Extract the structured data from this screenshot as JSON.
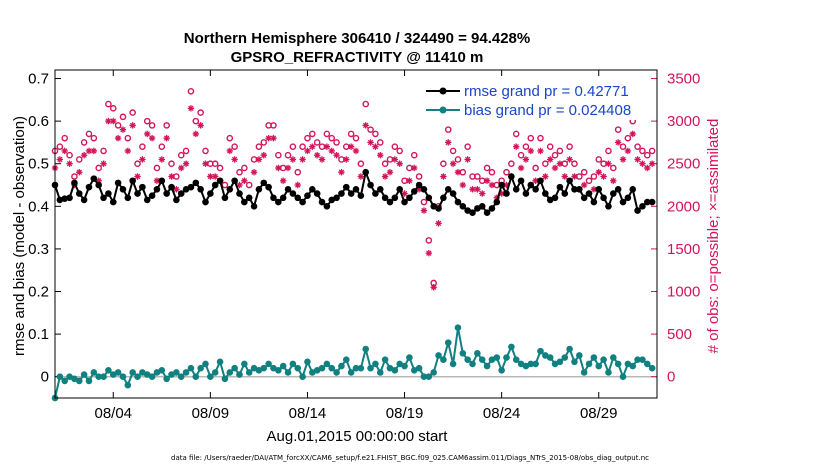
{
  "chart_data": {
    "type": "line",
    "title": "Northern Hemisphere 306410 / 324490 = 94.428%",
    "subtitle": "GPSRO_REFRACTIVITY @ 11410 m",
    "xlabel": "Aug.01,2015 00:00:00 start",
    "ylabel": "rmse and bias (model - observation)",
    "y2label": "# of obs: o=possible; ×=assimilated",
    "xlim": [
      1.0,
      32.0
    ],
    "ylim": [
      -0.05,
      0.72
    ],
    "y2lim": [
      -250,
      3600
    ],
    "x_ticks": [
      4,
      9,
      14,
      19,
      24,
      29
    ],
    "x_tick_labels": [
      "08/04",
      "08/09",
      "08/14",
      "08/19",
      "08/24",
      "08/29"
    ],
    "y_ticks": [
      0,
      0.1,
      0.2,
      0.3,
      0.4,
      0.5,
      0.6,
      0.7
    ],
    "y_tick_labels": [
      "0",
      "0.1",
      "0.2",
      "0.3",
      "0.4",
      "0.5",
      "0.6",
      "0.7"
    ],
    "y2_ticks": [
      0,
      500,
      1000,
      1500,
      2000,
      2500,
      3000,
      3500
    ],
    "y2_tick_labels": [
      "0",
      "500",
      "1000",
      "1500",
      "2000",
      "2500",
      "3000",
      "3500"
    ],
    "zero_line": 0,
    "colors": {
      "rmse": "#000000",
      "bias": "#118080",
      "obs": "#d4145a",
      "legend_text": "#1a46c8"
    },
    "legend": {
      "position": "top-right",
      "rmse_label": "rmse grand pr = 0.42771",
      "bias_label": "bias grand pr = 0.024408"
    },
    "rmse": {
      "name": "rmse",
      "x": [
        1.0,
        1.25,
        1.5,
        1.75,
        2.0,
        2.25,
        2.5,
        2.75,
        3.0,
        3.25,
        3.5,
        3.75,
        4.0,
        4.25,
        4.5,
        4.75,
        5.0,
        5.25,
        5.5,
        5.75,
        6.0,
        6.25,
        6.5,
        6.75,
        7.0,
        7.25,
        7.5,
        7.75,
        8.0,
        8.25,
        8.5,
        8.75,
        9.0,
        9.25,
        9.5,
        9.75,
        10.0,
        10.25,
        10.5,
        10.75,
        11.0,
        11.25,
        11.5,
        11.75,
        12.0,
        12.25,
        12.5,
        12.75,
        13.0,
        13.25,
        13.5,
        13.75,
        14.0,
        14.25,
        14.5,
        14.75,
        15.0,
        15.25,
        15.5,
        15.75,
        16.0,
        16.25,
        16.5,
        16.75,
        17.0,
        17.25,
        17.5,
        17.75,
        18.0,
        18.25,
        18.5,
        18.75,
        19.0,
        19.25,
        19.5,
        19.75,
        20.0,
        20.25,
        20.5,
        20.75,
        21.0,
        21.25,
        21.5,
        21.75,
        22.0,
        22.25,
        22.5,
        22.75,
        23.0,
        23.25,
        23.5,
        23.75,
        24.0,
        24.25,
        24.5,
        24.75,
        25.0,
        25.25,
        25.5,
        25.75,
        26.0,
        26.25,
        26.5,
        26.75,
        27.0,
        27.25,
        27.5,
        27.75,
        28.0,
        28.25,
        28.5,
        28.75,
        29.0,
        29.25,
        29.5,
        29.75,
        30.0,
        30.25,
        30.5,
        30.75,
        31.0,
        31.25,
        31.5,
        31.75
      ],
      "values": [
        0.45,
        0.415,
        0.418,
        0.42,
        0.455,
        0.43,
        0.415,
        0.445,
        0.465,
        0.45,
        0.42,
        0.43,
        0.41,
        0.455,
        0.44,
        0.42,
        0.46,
        0.43,
        0.445,
        0.415,
        0.425,
        0.44,
        0.46,
        0.43,
        0.445,
        0.415,
        0.43,
        0.44,
        0.445,
        0.455,
        0.44,
        0.41,
        0.43,
        0.45,
        0.46,
        0.42,
        0.44,
        0.46,
        0.43,
        0.41,
        0.42,
        0.4,
        0.44,
        0.455,
        0.445,
        0.42,
        0.41,
        0.42,
        0.44,
        0.43,
        0.42,
        0.41,
        0.425,
        0.44,
        0.43,
        0.41,
        0.4,
        0.415,
        0.42,
        0.43,
        0.445,
        0.43,
        0.44,
        0.425,
        0.48,
        0.45,
        0.43,
        0.44,
        0.42,
        0.41,
        0.42,
        0.44,
        0.41,
        0.42,
        0.435,
        0.45,
        0.44,
        0.42,
        0.4,
        0.395,
        0.42,
        0.44,
        0.43,
        0.41,
        0.4,
        0.39,
        0.385,
        0.395,
        0.4,
        0.385,
        0.395,
        0.41,
        0.45,
        0.43,
        0.47,
        0.44,
        0.46,
        0.43,
        0.45,
        0.44,
        0.46,
        0.43,
        0.415,
        0.42,
        0.445,
        0.43,
        0.46,
        0.44,
        0.44,
        0.42,
        0.43,
        0.41,
        0.44,
        0.42,
        0.4,
        0.43,
        0.44,
        0.41,
        0.42,
        0.44,
        0.39,
        0.4,
        0.41,
        0.41
      ]
    },
    "bias": {
      "name": "bias",
      "x": [
        1.0,
        1.25,
        1.5,
        1.75,
        2.0,
        2.25,
        2.5,
        2.75,
        3.0,
        3.25,
        3.5,
        3.75,
        4.0,
        4.25,
        4.5,
        4.75,
        5.0,
        5.25,
        5.5,
        5.75,
        6.0,
        6.25,
        6.5,
        6.75,
        7.0,
        7.25,
        7.5,
        7.75,
        8.0,
        8.25,
        8.5,
        8.75,
        9.0,
        9.25,
        9.5,
        9.75,
        10.0,
        10.25,
        10.5,
        10.75,
        11.0,
        11.25,
        11.5,
        11.75,
        12.0,
        12.25,
        12.5,
        12.75,
        13.0,
        13.25,
        13.5,
        13.75,
        14.0,
        14.25,
        14.5,
        14.75,
        15.0,
        15.25,
        15.5,
        15.75,
        16.0,
        16.25,
        16.5,
        16.75,
        17.0,
        17.25,
        17.5,
        17.75,
        18.0,
        18.25,
        18.5,
        18.75,
        19.0,
        19.25,
        19.5,
        19.75,
        20.0,
        20.25,
        20.5,
        20.75,
        21.0,
        21.25,
        21.5,
        21.75,
        22.0,
        22.25,
        22.5,
        22.75,
        23.0,
        23.25,
        23.5,
        23.75,
        24.0,
        24.25,
        24.5,
        24.75,
        25.0,
        25.25,
        25.5,
        25.75,
        26.0,
        26.25,
        26.5,
        26.75,
        27.0,
        27.25,
        27.5,
        27.75,
        28.0,
        28.25,
        28.5,
        28.75,
        29.0,
        29.25,
        29.5,
        29.75,
        30.0,
        30.25,
        30.5,
        30.75,
        31.0,
        31.25,
        31.5,
        31.75
      ],
      "values": [
        -0.05,
        0.0,
        -0.01,
        0.0,
        -0.005,
        -0.01,
        0.005,
        -0.01,
        0.01,
        0.0,
        0.0,
        0.015,
        0.005,
        0.01,
        0.0,
        -0.02,
        0.01,
        0.0,
        0.01,
        0.005,
        0.0,
        0.01,
        0.015,
        -0.005,
        0.005,
        0.01,
        0.0,
        0.01,
        0.02,
        0.0,
        0.02,
        0.03,
        0.0,
        0.01,
        0.035,
        -0.005,
        0.01,
        0.02,
        0.005,
        0.03,
        0.01,
        0.02,
        0.015,
        0.02,
        0.03,
        0.02,
        0.015,
        0.025,
        0.01,
        0.03,
        0.02,
        0.0,
        0.035,
        0.01,
        0.015,
        0.02,
        0.03,
        0.02,
        0.01,
        0.025,
        0.04,
        0.01,
        0.02,
        0.02,
        0.065,
        0.02,
        0.03,
        0.01,
        0.04,
        0.02,
        0.015,
        0.03,
        0.025,
        0.045,
        0.015,
        0.02,
        0.0,
        0.0,
        0.01,
        0.05,
        0.04,
        0.08,
        0.03,
        0.115,
        0.055,
        0.04,
        0.03,
        0.055,
        0.04,
        0.025,
        0.04,
        0.045,
        0.015,
        0.045,
        0.07,
        0.04,
        0.03,
        0.025,
        0.03,
        0.03,
        0.06,
        0.05,
        0.045,
        0.03,
        0.035,
        0.045,
        0.065,
        0.035,
        0.05,
        0.01,
        0.03,
        0.045,
        0.025,
        0.04,
        0.01,
        0.045,
        0.03,
        0.0,
        0.03,
        0.025,
        0.04,
        0.04,
        0.03,
        0.02
      ]
    },
    "obs_possible": {
      "name": "possible",
      "x": [
        1.0,
        1.25,
        1.5,
        1.75,
        2.0,
        2.25,
        2.5,
        2.75,
        3.0,
        3.25,
        3.5,
        3.75,
        4.0,
        4.25,
        4.5,
        4.75,
        5.0,
        5.25,
        5.5,
        5.75,
        6.0,
        6.25,
        6.5,
        6.75,
        7.0,
        7.25,
        7.5,
        7.75,
        8.0,
        8.25,
        8.5,
        8.75,
        9.0,
        9.25,
        9.5,
        9.75,
        10.0,
        10.25,
        10.5,
        10.75,
        11.0,
        11.25,
        11.5,
        11.75,
        12.0,
        12.25,
        12.5,
        12.75,
        13.0,
        13.25,
        13.5,
        13.75,
        14.0,
        14.25,
        14.5,
        14.75,
        15.0,
        15.25,
        15.5,
        15.75,
        16.0,
        16.25,
        16.5,
        16.75,
        17.0,
        17.25,
        17.5,
        17.75,
        18.0,
        18.25,
        18.5,
        18.75,
        19.0,
        19.25,
        19.5,
        19.75,
        20.0,
        20.25,
        20.5,
        20.75,
        21.0,
        21.25,
        21.5,
        21.75,
        22.0,
        22.25,
        22.5,
        22.75,
        23.0,
        23.25,
        23.5,
        23.75,
        24.0,
        24.25,
        24.5,
        24.75,
        25.0,
        25.25,
        25.5,
        25.75,
        26.0,
        26.25,
        26.5,
        26.75,
        27.0,
        27.25,
        27.5,
        27.75,
        28.0,
        28.25,
        28.5,
        28.75,
        29.0,
        29.25,
        29.5,
        29.75,
        30.0,
        30.25,
        30.5,
        30.75,
        31.0,
        31.25,
        31.5,
        31.75
      ],
      "values": [
        2650,
        2700,
        2800,
        2600,
        2350,
        2550,
        2750,
        2850,
        2800,
        2450,
        2650,
        3200,
        3150,
        2950,
        3050,
        2800,
        3100,
        2500,
        2700,
        3000,
        2950,
        2450,
        2700,
        2950,
        2500,
        2350,
        2600,
        2650,
        3350,
        3000,
        3100,
        2650,
        2500,
        2500,
        2450,
        2250,
        2800,
        2700,
        2400,
        2450,
        2250,
        2550,
        2700,
        2750,
        2950,
        2950,
        2600,
        2450,
        2600,
        2700,
        2400,
        2700,
        2800,
        2850,
        2750,
        2700,
        2850,
        2800,
        2750,
        2550,
        2700,
        2850,
        2800,
        2500,
        3200,
        2900,
        2850,
        2750,
        2500,
        2550,
        2700,
        2650,
        2300,
        2450,
        2600,
        2350,
        2050,
        1600,
        1100,
        2000,
        2500,
        2900,
        2650,
        2550,
        2400,
        2700,
        2350,
        2350,
        2300,
        2450,
        2400,
        2250,
        2300,
        2400,
        2500,
        2850,
        2600,
        2700,
        2800,
        2450,
        2800,
        2500,
        2700,
        2600,
        2650,
        2500,
        2700,
        2500,
        2350,
        2400,
        2300,
        2350,
        2550,
        2500,
        2650,
        2450,
        2900,
        2700,
        2800,
        3000,
        2700,
        2650,
        2600,
        2650
      ]
    },
    "obs_assimilated": {
      "name": "assimilated",
      "x": [
        1.0,
        1.25,
        1.5,
        1.75,
        2.0,
        2.25,
        2.5,
        2.75,
        3.0,
        3.25,
        3.5,
        3.75,
        4.0,
        4.25,
        4.5,
        4.75,
        5.0,
        5.25,
        5.5,
        5.75,
        6.0,
        6.25,
        6.5,
        6.75,
        7.0,
        7.25,
        7.5,
        7.75,
        8.0,
        8.25,
        8.5,
        8.75,
        9.0,
        9.25,
        9.5,
        9.75,
        10.0,
        10.25,
        10.5,
        10.75,
        11.0,
        11.25,
        11.5,
        11.75,
        12.0,
        12.25,
        12.5,
        12.75,
        13.0,
        13.25,
        13.5,
        13.75,
        14.0,
        14.25,
        14.5,
        14.75,
        15.0,
        15.25,
        15.5,
        15.75,
        16.0,
        16.25,
        16.5,
        16.75,
        17.0,
        17.25,
        17.5,
        17.75,
        18.0,
        18.25,
        18.5,
        18.75,
        19.0,
        19.25,
        19.5,
        19.75,
        20.0,
        20.25,
        20.5,
        20.75,
        21.0,
        21.25,
        21.5,
        21.75,
        22.0,
        22.25,
        22.5,
        22.75,
        23.0,
        23.25,
        23.5,
        23.75,
        24.0,
        24.25,
        24.5,
        24.75,
        25.0,
        25.25,
        25.5,
        25.75,
        26.0,
        26.25,
        26.5,
        26.75,
        27.0,
        27.25,
        27.5,
        27.75,
        28.0,
        28.25,
        28.5,
        28.75,
        29.0,
        29.25,
        29.5,
        29.75,
        30.0,
        30.25,
        30.5,
        30.75,
        31.0,
        31.25,
        31.5,
        31.75
      ],
      "values": [
        2450,
        2550,
        2650,
        2500,
        2250,
        2400,
        2600,
        2650,
        2650,
        2300,
        2500,
        3000,
        3000,
        2800,
        2900,
        2650,
        2950,
        2350,
        2550,
        2850,
        2800,
        2300,
        2550,
        2800,
        2350,
        2200,
        2450,
        2500,
        3150,
        2850,
        2950,
        2500,
        2350,
        2350,
        2300,
        2100,
        2650,
        2550,
        2250,
        2300,
        2100,
        2400,
        2550,
        2600,
        2800,
        2800,
        2450,
        2300,
        2450,
        2550,
        2250,
        2550,
        2650,
        2700,
        2600,
        2550,
        2700,
        2650,
        2600,
        2400,
        2550,
        2700,
        2650,
        2350,
        2950,
        2750,
        2700,
        2600,
        2350,
        2400,
        2550,
        2500,
        2150,
        2300,
        2450,
        2200,
        1950,
        1450,
        1050,
        1800,
        2350,
        2750,
        2500,
        2400,
        2250,
        2550,
        2200,
        2200,
        2150,
        2300,
        2250,
        2100,
        2150,
        2250,
        2350,
        2700,
        2450,
        2550,
        2650,
        2300,
        2650,
        2350,
        2550,
        2450,
        2500,
        2350,
        2550,
        2350,
        2200,
        2250,
        2150,
        2200,
        2400,
        2350,
        2500,
        2300,
        2750,
        2550,
        2650,
        2850,
        2550,
        2500,
        2450,
        2500
      ]
    }
  },
  "footnote": "data file: /Users/raeder/DAI/ATM_forcXX/CAM6_setup/f.e21.FHIST_BGC.f09_025.CAM6assim.011/Diags_NTrS_2015-08/obs_diag_output.nc"
}
